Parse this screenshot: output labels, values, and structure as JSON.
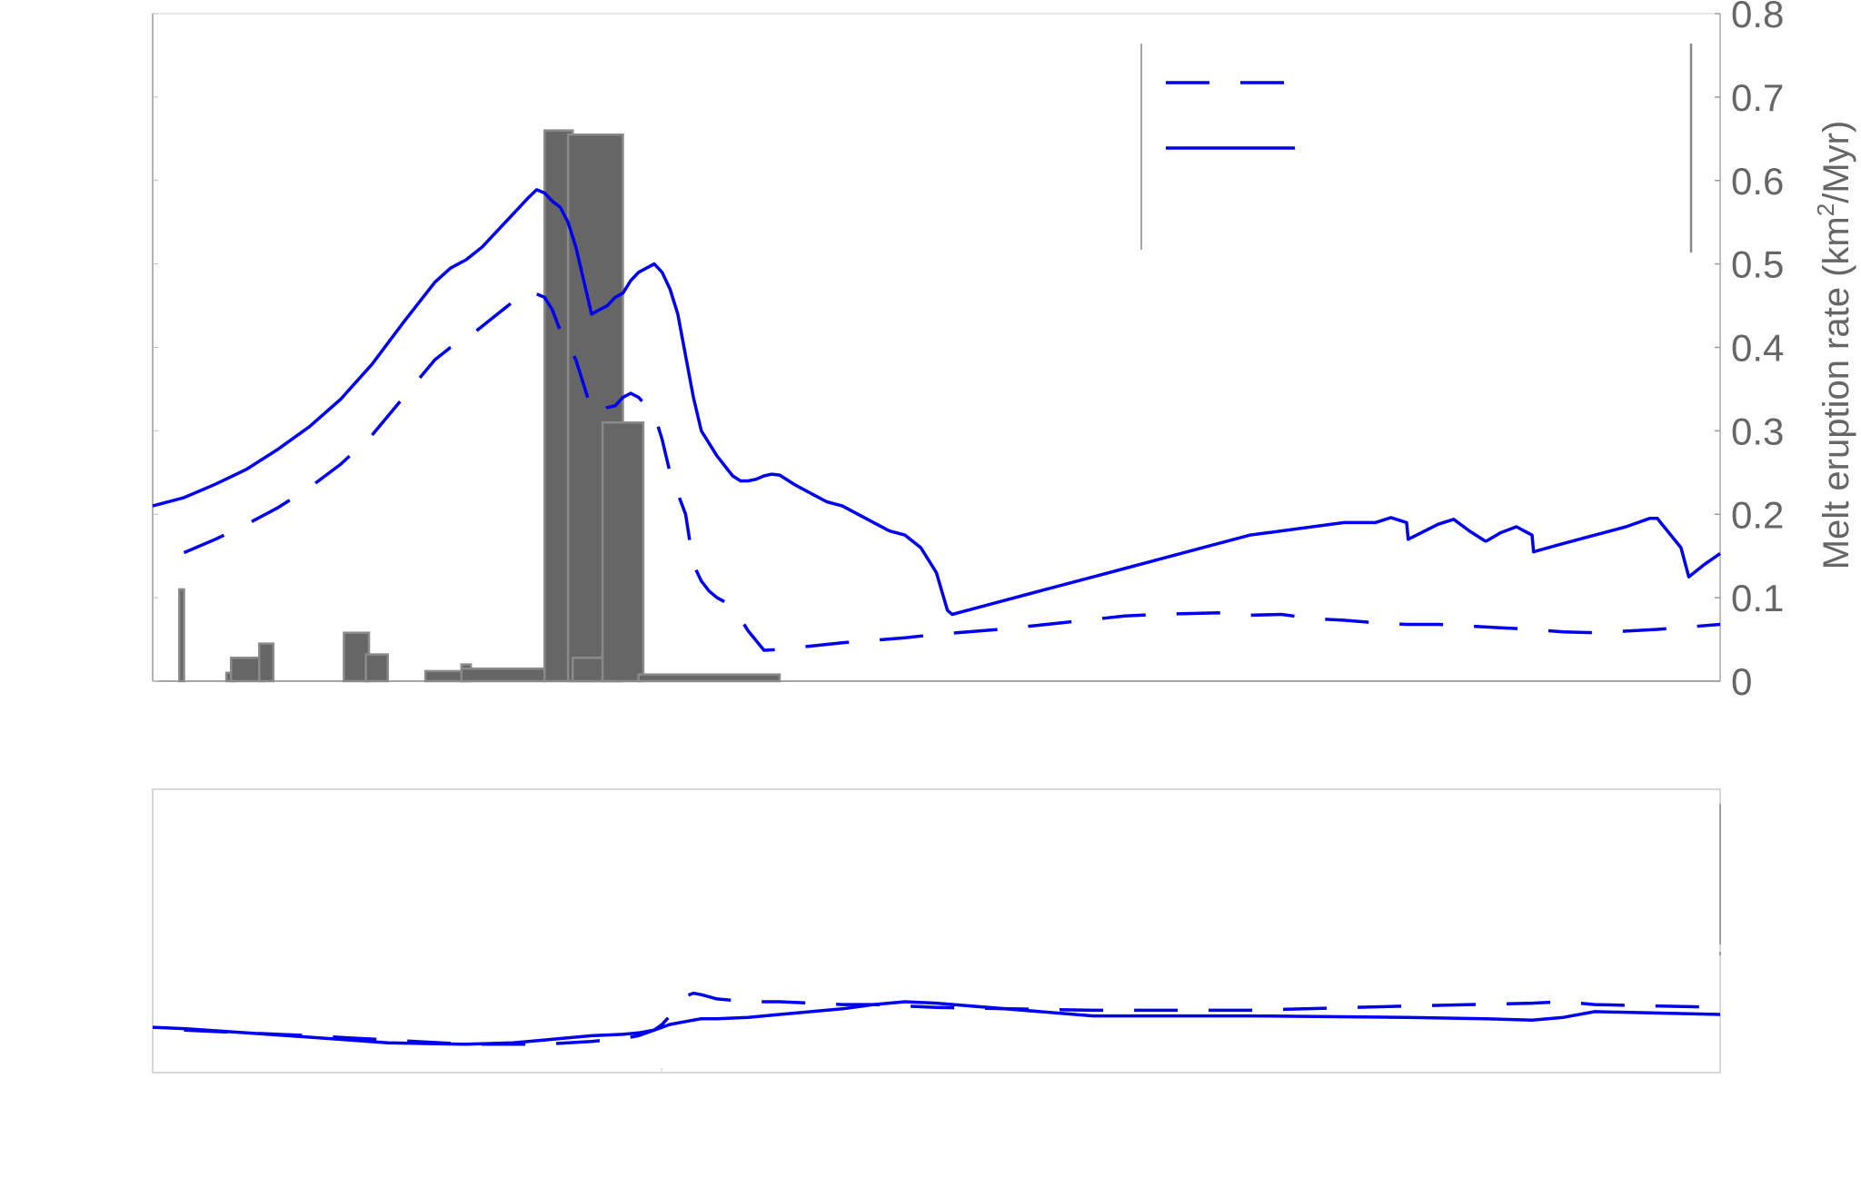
{
  "chart_data": [
    {
      "type": "bar",
      "panel": "top",
      "ylabel_prefix": "Melt eruption rate (km",
      "ylabel_sup": "2",
      "ylabel_suffix": "/Myr)",
      "y_axis_side": "right",
      "ylim": [
        0,
        0.8
      ],
      "yticks": [
        "0",
        "0.1",
        "0.2",
        "0.3",
        "0.4",
        "0.5",
        "0.6",
        "0.7",
        "0.8"
      ],
      "xlim": [
        0,
        1000
      ],
      "legend": {
        "placement": "top-right",
        "entries": [
          {
            "style": "dashed"
          },
          {
            "style": "solid"
          }
        ]
      },
      "colors": {
        "line": "#0000ee",
        "bar": "#666666",
        "bar_edge": "#8a8a8a",
        "axis": "#777777"
      },
      "bars": [
        {
          "x0": 17,
          "x1": 20,
          "value": 0.11
        },
        {
          "x0": 47,
          "x1": 52,
          "value": 0.01
        },
        {
          "x0": 50,
          "x1": 70,
          "value": 0.028
        },
        {
          "x0": 68,
          "x1": 77,
          "value": 0.045
        },
        {
          "x0": 122,
          "x1": 138,
          "value": 0.058
        },
        {
          "x0": 136,
          "x1": 150,
          "value": 0.032
        },
        {
          "x0": 174,
          "x1": 200,
          "value": 0.012
        },
        {
          "x0": 197,
          "x1": 203,
          "value": 0.02
        },
        {
          "x0": 197,
          "x1": 250,
          "value": 0.015
        },
        {
          "x0": 250,
          "x1": 268,
          "value": 0.66
        },
        {
          "x0": 265,
          "x1": 300,
          "value": 0.655
        },
        {
          "x0": 268,
          "x1": 298,
          "value": 0.028
        },
        {
          "x0": 287,
          "x1": 313,
          "value": 0.31
        },
        {
          "x0": 310,
          "x1": 400,
          "value": 0.008
        }
      ],
      "series": [
        {
          "style": "dashed",
          "x": [
            20,
            40,
            60,
            80,
            100,
            120,
            140,
            160,
            180,
            190,
            200,
            210,
            220,
            230,
            240,
            250,
            255,
            260,
            270,
            275,
            280,
            285,
            290,
            295,
            300,
            305,
            310,
            320,
            325,
            330,
            340,
            345,
            350,
            355,
            360,
            365,
            370,
            380,
            390,
            400,
            420,
            440,
            460,
            480,
            500,
            520,
            540,
            560,
            580,
            600,
            620,
            640,
            660,
            680,
            700,
            720,
            740,
            760,
            780,
            800,
            820,
            840,
            860,
            880,
            900,
            920,
            940,
            960,
            980,
            1000
          ],
          "y": [
            0.154,
            0.17,
            0.188,
            0.208,
            0.232,
            0.26,
            0.295,
            0.34,
            0.385,
            0.4,
            0.41,
            0.425,
            0.44,
            0.455,
            0.468,
            0.46,
            0.445,
            0.42,
            0.385,
            0.355,
            0.325,
            0.32,
            0.328,
            0.33,
            0.34,
            0.345,
            0.34,
            0.32,
            0.29,
            0.25,
            0.2,
            0.14,
            0.12,
            0.108,
            0.1,
            0.095,
            0.09,
            0.06,
            0.037,
            0.038,
            0.042,
            0.046,
            0.049,
            0.052,
            0.056,
            0.059,
            0.062,
            0.066,
            0.07,
            0.074,
            0.078,
            0.08,
            0.081,
            0.082,
            0.079,
            0.08,
            0.075,
            0.073,
            0.07,
            0.068,
            0.068,
            0.066,
            0.064,
            0.062,
            0.059,
            0.058,
            0.06,
            0.062,
            0.065,
            0.068
          ]
        },
        {
          "style": "solid",
          "x": [
            0,
            20,
            40,
            60,
            80,
            100,
            120,
            140,
            160,
            180,
            190,
            200,
            210,
            220,
            230,
            240,
            245,
            250,
            255,
            260,
            265,
            270,
            275,
            280,
            285,
            290,
            295,
            300,
            305,
            310,
            315,
            320,
            325,
            330,
            335,
            340,
            345,
            350,
            355,
            360,
            365,
            370,
            375,
            380,
            385,
            390,
            395,
            400,
            410,
            420,
            430,
            440,
            450,
            460,
            470,
            480,
            490,
            500,
            507,
            510,
            520,
            540,
            560,
            580,
            600,
            620,
            660,
            700,
            760,
            780,
            790,
            800,
            801,
            820,
            830,
            840,
            850,
            851,
            860,
            870,
            880,
            881,
            900,
            920,
            940,
            955,
            960,
            962,
            975,
            980,
            990,
            1000
          ],
          "y": [
            0.21,
            0.22,
            0.236,
            0.254,
            0.278,
            0.305,
            0.338,
            0.38,
            0.43,
            0.478,
            0.495,
            0.505,
            0.52,
            0.54,
            0.56,
            0.58,
            0.589,
            0.585,
            0.575,
            0.568,
            0.55,
            0.52,
            0.48,
            0.44,
            0.445,
            0.45,
            0.46,
            0.465,
            0.48,
            0.49,
            0.495,
            0.5,
            0.49,
            0.47,
            0.44,
            0.39,
            0.34,
            0.3,
            0.285,
            0.27,
            0.258,
            0.246,
            0.24,
            0.24,
            0.242,
            0.246,
            0.248,
            0.247,
            0.235,
            0.225,
            0.215,
            0.21,
            0.2,
            0.19,
            0.18,
            0.175,
            0.16,
            0.13,
            0.085,
            0.08,
            0.085,
            0.095,
            0.105,
            0.115,
            0.125,
            0.135,
            0.155,
            0.175,
            0.19,
            0.19,
            0.196,
            0.19,
            0.17,
            0.188,
            0.194,
            0.18,
            0.168,
            0.168,
            0.178,
            0.185,
            0.175,
            0.155,
            0.165,
            0.175,
            0.185,
            0.195,
            0.195,
            0.19,
            0.16,
            0.125,
            0.14,
            0.153
          ]
        }
      ]
    },
    {
      "type": "line",
      "panel": "bottom",
      "ylim": [
        0,
        1
      ],
      "xlim": [
        0,
        1000
      ],
      "series": [
        {
          "style": "dashed",
          "x": [
            20,
            60,
            100,
            150,
            200,
            250,
            280,
            300,
            310,
            320,
            325,
            330,
            335,
            340,
            345,
            350,
            360,
            380,
            400,
            420,
            440,
            460,
            480,
            500,
            600,
            700,
            800,
            880,
            900,
            920,
            1000
          ],
          "y": [
            0.15,
            0.14,
            0.13,
            0.115,
            0.1,
            0.1,
            0.11,
            0.12,
            0.13,
            0.15,
            0.17,
            0.2,
            0.24,
            0.27,
            0.28,
            0.275,
            0.26,
            0.25,
            0.25,
            0.245,
            0.24,
            0.24,
            0.235,
            0.23,
            0.22,
            0.22,
            0.235,
            0.245,
            0.25,
            0.24,
            0.23
          ]
        },
        {
          "style": "solid",
          "x": [
            0,
            20,
            60,
            100,
            150,
            200,
            230,
            250,
            280,
            300,
            310,
            320,
            330,
            340,
            350,
            360,
            380,
            400,
            420,
            440,
            460,
            480,
            500,
            600,
            700,
            800,
            850,
            880,
            900,
            920,
            1000
          ],
          "y": [
            0.16,
            0.155,
            0.14,
            0.125,
            0.105,
            0.1,
            0.105,
            0.115,
            0.13,
            0.135,
            0.14,
            0.15,
            0.17,
            0.18,
            0.19,
            0.19,
            0.195,
            0.205,
            0.215,
            0.225,
            0.24,
            0.25,
            0.245,
            0.2,
            0.2,
            0.195,
            0.19,
            0.185,
            0.195,
            0.215,
            0.205
          ]
        }
      ]
    }
  ]
}
